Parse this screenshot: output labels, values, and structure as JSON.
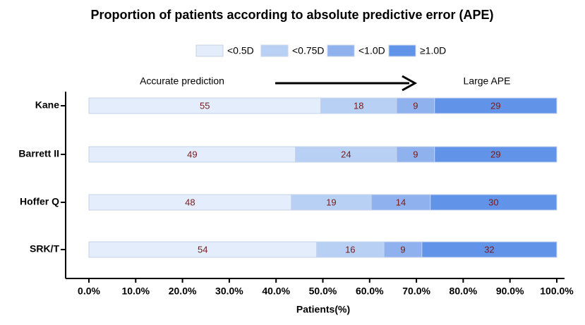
{
  "chart_data": {
    "type": "bar",
    "orientation": "horizontal",
    "stacking": "percent",
    "title": "Proportion of patients according to absolute predictive error (APE)",
    "x_label": "Patients(%)",
    "categories": [
      "Kane",
      "Barrett II",
      "Hoffer Q",
      "SRK/T"
    ],
    "series": [
      {
        "name": "<0.5D",
        "color": "#e3edfb",
        "values": [
          55,
          49,
          48,
          54
        ]
      },
      {
        "name": "<0.75D",
        "color": "#b9d0f5",
        "values": [
          18,
          24,
          19,
          16
        ]
      },
      {
        "name": "<1.0D",
        "color": "#8fb2ee",
        "values": [
          9,
          9,
          14,
          9
        ]
      },
      {
        "name": "≥1.0D",
        "color": "#6193e8",
        "values": [
          29,
          29,
          30,
          32
        ]
      }
    ],
    "xlim": [
      0,
      100
    ],
    "xticks": [
      {
        "value": 0,
        "label": "0.0%"
      },
      {
        "value": 10,
        "label": "10.0%"
      },
      {
        "value": 20,
        "label": "20.0%"
      },
      {
        "value": 30,
        "label": "30.0%"
      },
      {
        "value": 40,
        "label": "40.0%"
      },
      {
        "value": 50,
        "label": "50.0%"
      },
      {
        "value": 60,
        "label": "60.0%"
      },
      {
        "value": 70,
        "label": "70.0%"
      },
      {
        "value": 80,
        "label": "80.0%"
      },
      {
        "value": 90,
        "label": "90.0%"
      },
      {
        "value": 100,
        "label": "100.0%"
      }
    ],
    "annotations": [
      "Accurate prediction",
      "Large APE"
    ],
    "legend": "top"
  }
}
